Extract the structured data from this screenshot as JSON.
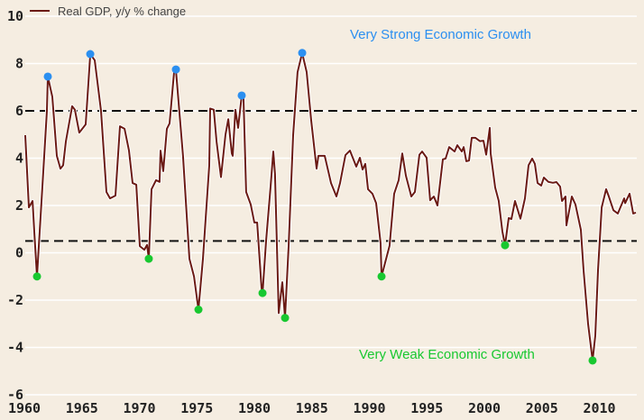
{
  "chart_data": {
    "type": "line",
    "title": "",
    "xlabel": "",
    "ylabel": "",
    "xlim": [
      1960,
      2013.6
    ],
    "ylim": [
      -6,
      10
    ],
    "grid": true,
    "legend": {
      "label": "Real GDP, y/y % change",
      "placement": "top-left"
    },
    "x_ticks": [
      1960,
      1965,
      1970,
      1975,
      1980,
      1985,
      1990,
      1995,
      2000,
      2005,
      2010
    ],
    "x_tick_labels": [
      "1960",
      "1965",
      "1970",
      "1975",
      "1980",
      "1985",
      "1990",
      "1995",
      "2000",
      "2005",
      "2010"
    ],
    "y_ticks": [
      -6,
      -4,
      -2,
      0,
      2,
      4,
      6,
      8,
      10
    ],
    "y_tick_labels": [
      "-6",
      "-4",
      "-2",
      "0",
      "2",
      "4",
      "6",
      "8",
      "10"
    ],
    "reference_lines": [
      {
        "value": 6,
        "style": "dashed"
      },
      {
        "value": 0.5,
        "style": "dashed"
      }
    ],
    "annotations": [
      {
        "text": "Very Strong Economic Growth",
        "color": "#2b8ff0"
      },
      {
        "text": "Very Weak Economic Growth",
        "color": "#18c830"
      }
    ],
    "series": [
      {
        "name": "Real GDP, y/y % change",
        "color": "#6b1a14",
        "points": [
          [
            1960.08,
            4.97
          ],
          [
            1960.39,
            1.92
          ],
          [
            1960.71,
            2.19
          ],
          [
            1960.86,
            0.9
          ],
          [
            1961.1,
            -1.0
          ],
          [
            1961.57,
            2.8
          ],
          [
            1961.96,
            6.0
          ],
          [
            1962.04,
            7.45
          ],
          [
            1962.43,
            6.6
          ],
          [
            1962.82,
            4.1
          ],
          [
            1963.14,
            3.56
          ],
          [
            1963.37,
            3.7
          ],
          [
            1963.61,
            4.7
          ],
          [
            1964.16,
            6.2
          ],
          [
            1964.39,
            6.05
          ],
          [
            1964.78,
            5.08
          ],
          [
            1965.33,
            5.43
          ],
          [
            1965.73,
            8.4
          ],
          [
            1966.12,
            8.14
          ],
          [
            1966.67,
            6.0
          ],
          [
            1967.14,
            2.57
          ],
          [
            1967.45,
            2.3
          ],
          [
            1967.92,
            2.42
          ],
          [
            1968.31,
            5.35
          ],
          [
            1968.71,
            5.24
          ],
          [
            1969.1,
            4.32
          ],
          [
            1969.41,
            2.95
          ],
          [
            1969.73,
            2.88
          ],
          [
            1970.04,
            0.28
          ],
          [
            1970.43,
            0.13
          ],
          [
            1970.67,
            0.33
          ],
          [
            1970.82,
            -0.25
          ],
          [
            1971.06,
            2.69
          ],
          [
            1971.45,
            3.07
          ],
          [
            1971.76,
            3.0
          ],
          [
            1971.84,
            4.32
          ],
          [
            1972.08,
            3.45
          ],
          [
            1972.39,
            5.24
          ],
          [
            1972.63,
            5.47
          ],
          [
            1973.02,
            7.64
          ],
          [
            1973.18,
            7.75
          ],
          [
            1973.8,
            4.1
          ],
          [
            1974.35,
            -0.25
          ],
          [
            1974.75,
            -1.0
          ],
          [
            1975.14,
            -2.4
          ],
          [
            1975.53,
            -0.25
          ],
          [
            1976.08,
            3.7
          ],
          [
            1976.16,
            6.1
          ],
          [
            1976.47,
            6.05
          ],
          [
            1976.71,
            4.7
          ],
          [
            1977.1,
            3.2
          ],
          [
            1977.49,
            5.0
          ],
          [
            1977.73,
            5.65
          ],
          [
            1978.04,
            4.2
          ],
          [
            1978.12,
            4.1
          ],
          [
            1978.35,
            6.05
          ],
          [
            1978.59,
            5.28
          ],
          [
            1978.9,
            6.65
          ],
          [
            1979.06,
            6.5
          ],
          [
            1979.29,
            2.57
          ],
          [
            1979.69,
            2.04
          ],
          [
            1980.0,
            1.28
          ],
          [
            1980.24,
            1.28
          ],
          [
            1980.63,
            -1.5
          ],
          [
            1980.71,
            -1.7
          ],
          [
            1981.02,
            0.5
          ],
          [
            1981.41,
            2.8
          ],
          [
            1981.65,
            4.28
          ],
          [
            1981.8,
            3.33
          ],
          [
            1982.12,
            -2.55
          ],
          [
            1982.43,
            -1.24
          ],
          [
            1982.67,
            -2.75
          ],
          [
            1982.98,
            0.28
          ],
          [
            1983.37,
            4.97
          ],
          [
            1983.76,
            7.64
          ],
          [
            1984.16,
            8.45
          ],
          [
            1984.55,
            7.64
          ],
          [
            1984.94,
            5.6
          ],
          [
            1985.41,
            3.56
          ],
          [
            1985.57,
            4.1
          ],
          [
            1986.12,
            4.1
          ],
          [
            1986.67,
            2.95
          ],
          [
            1987.14,
            2.38
          ],
          [
            1987.45,
            2.95
          ],
          [
            1987.92,
            4.13
          ],
          [
            1988.31,
            4.32
          ],
          [
            1988.86,
            3.64
          ],
          [
            1989.18,
            4.02
          ],
          [
            1989.41,
            3.52
          ],
          [
            1989.65,
            3.76
          ],
          [
            1989.88,
            2.69
          ],
          [
            1990.27,
            2.5
          ],
          [
            1990.59,
            2.1
          ],
          [
            1990.98,
            0.4
          ],
          [
            1991.06,
            -1.0
          ],
          [
            1991.76,
            0.3
          ],
          [
            1992.16,
            2.5
          ],
          [
            1992.55,
            3.07
          ],
          [
            1992.86,
            4.2
          ],
          [
            1993.18,
            3.26
          ],
          [
            1993.65,
            2.38
          ],
          [
            1993.96,
            2.57
          ],
          [
            1994.35,
            4.15
          ],
          [
            1994.59,
            4.28
          ],
          [
            1994.98,
            4.02
          ],
          [
            1995.29,
            2.22
          ],
          [
            1995.61,
            2.38
          ],
          [
            1995.92,
            2.0
          ],
          [
            1996.39,
            3.95
          ],
          [
            1996.63,
            3.98
          ],
          [
            1996.94,
            4.47
          ],
          [
            1997.41,
            4.28
          ],
          [
            1997.65,
            4.55
          ],
          [
            1998.04,
            4.28
          ],
          [
            1998.2,
            4.47
          ],
          [
            1998.43,
            3.87
          ],
          [
            1998.67,
            3.9
          ],
          [
            1998.9,
            4.86
          ],
          [
            1999.22,
            4.86
          ],
          [
            1999.61,
            4.72
          ],
          [
            1999.92,
            4.74
          ],
          [
            2000.16,
            4.15
          ],
          [
            2000.47,
            5.28
          ],
          [
            2000.55,
            4.2
          ],
          [
            2000.94,
            2.76
          ],
          [
            2001.25,
            2.2
          ],
          [
            2001.57,
            0.9
          ],
          [
            2001.8,
            0.32
          ],
          [
            2002.12,
            1.47
          ],
          [
            2002.35,
            1.43
          ],
          [
            2002.67,
            2.19
          ],
          [
            2003.14,
            1.44
          ],
          [
            2003.53,
            2.3
          ],
          [
            2003.84,
            3.7
          ],
          [
            2004.16,
            3.98
          ],
          [
            2004.39,
            3.76
          ],
          [
            2004.63,
            2.95
          ],
          [
            2004.94,
            2.84
          ],
          [
            2005.18,
            3.18
          ],
          [
            2005.57,
            3.0
          ],
          [
            2005.96,
            2.96
          ],
          [
            2006.27,
            2.99
          ],
          [
            2006.59,
            2.8
          ],
          [
            2006.75,
            2.19
          ],
          [
            2007.06,
            2.38
          ],
          [
            2007.14,
            1.16
          ],
          [
            2007.61,
            2.38
          ],
          [
            2007.92,
            2.04
          ],
          [
            2008.39,
            0.97
          ],
          [
            2008.63,
            -0.74
          ],
          [
            2009.02,
            -3.0
          ],
          [
            2009.41,
            -4.55
          ],
          [
            2009.65,
            -3.5
          ],
          [
            2009.88,
            -0.74
          ],
          [
            2010.2,
            1.92
          ],
          [
            2010.59,
            2.69
          ],
          [
            2010.82,
            2.38
          ],
          [
            2011.22,
            1.8
          ],
          [
            2011.61,
            1.66
          ],
          [
            2012.16,
            2.3
          ],
          [
            2012.24,
            2.1
          ],
          [
            2012.63,
            2.5
          ],
          [
            2012.94,
            1.66
          ],
          [
            2013.18,
            1.7
          ]
        ]
      }
    ],
    "highlight_points": {
      "strong": {
        "color": "#2b8ff0",
        "points": [
          [
            1962.04,
            7.45
          ],
          [
            1965.73,
            8.4
          ],
          [
            1973.18,
            7.75
          ],
          [
            1978.9,
            6.65
          ],
          [
            1984.16,
            8.45
          ]
        ]
      },
      "weak": {
        "color": "#18c830",
        "points": [
          [
            1961.1,
            -1.0
          ],
          [
            1970.82,
            -0.25
          ],
          [
            1975.14,
            -2.4
          ],
          [
            1980.71,
            -1.7
          ],
          [
            1982.67,
            -2.75
          ],
          [
            1991.06,
            -1.0
          ],
          [
            2001.8,
            0.32
          ],
          [
            2009.41,
            -4.55
          ]
        ]
      }
    }
  }
}
